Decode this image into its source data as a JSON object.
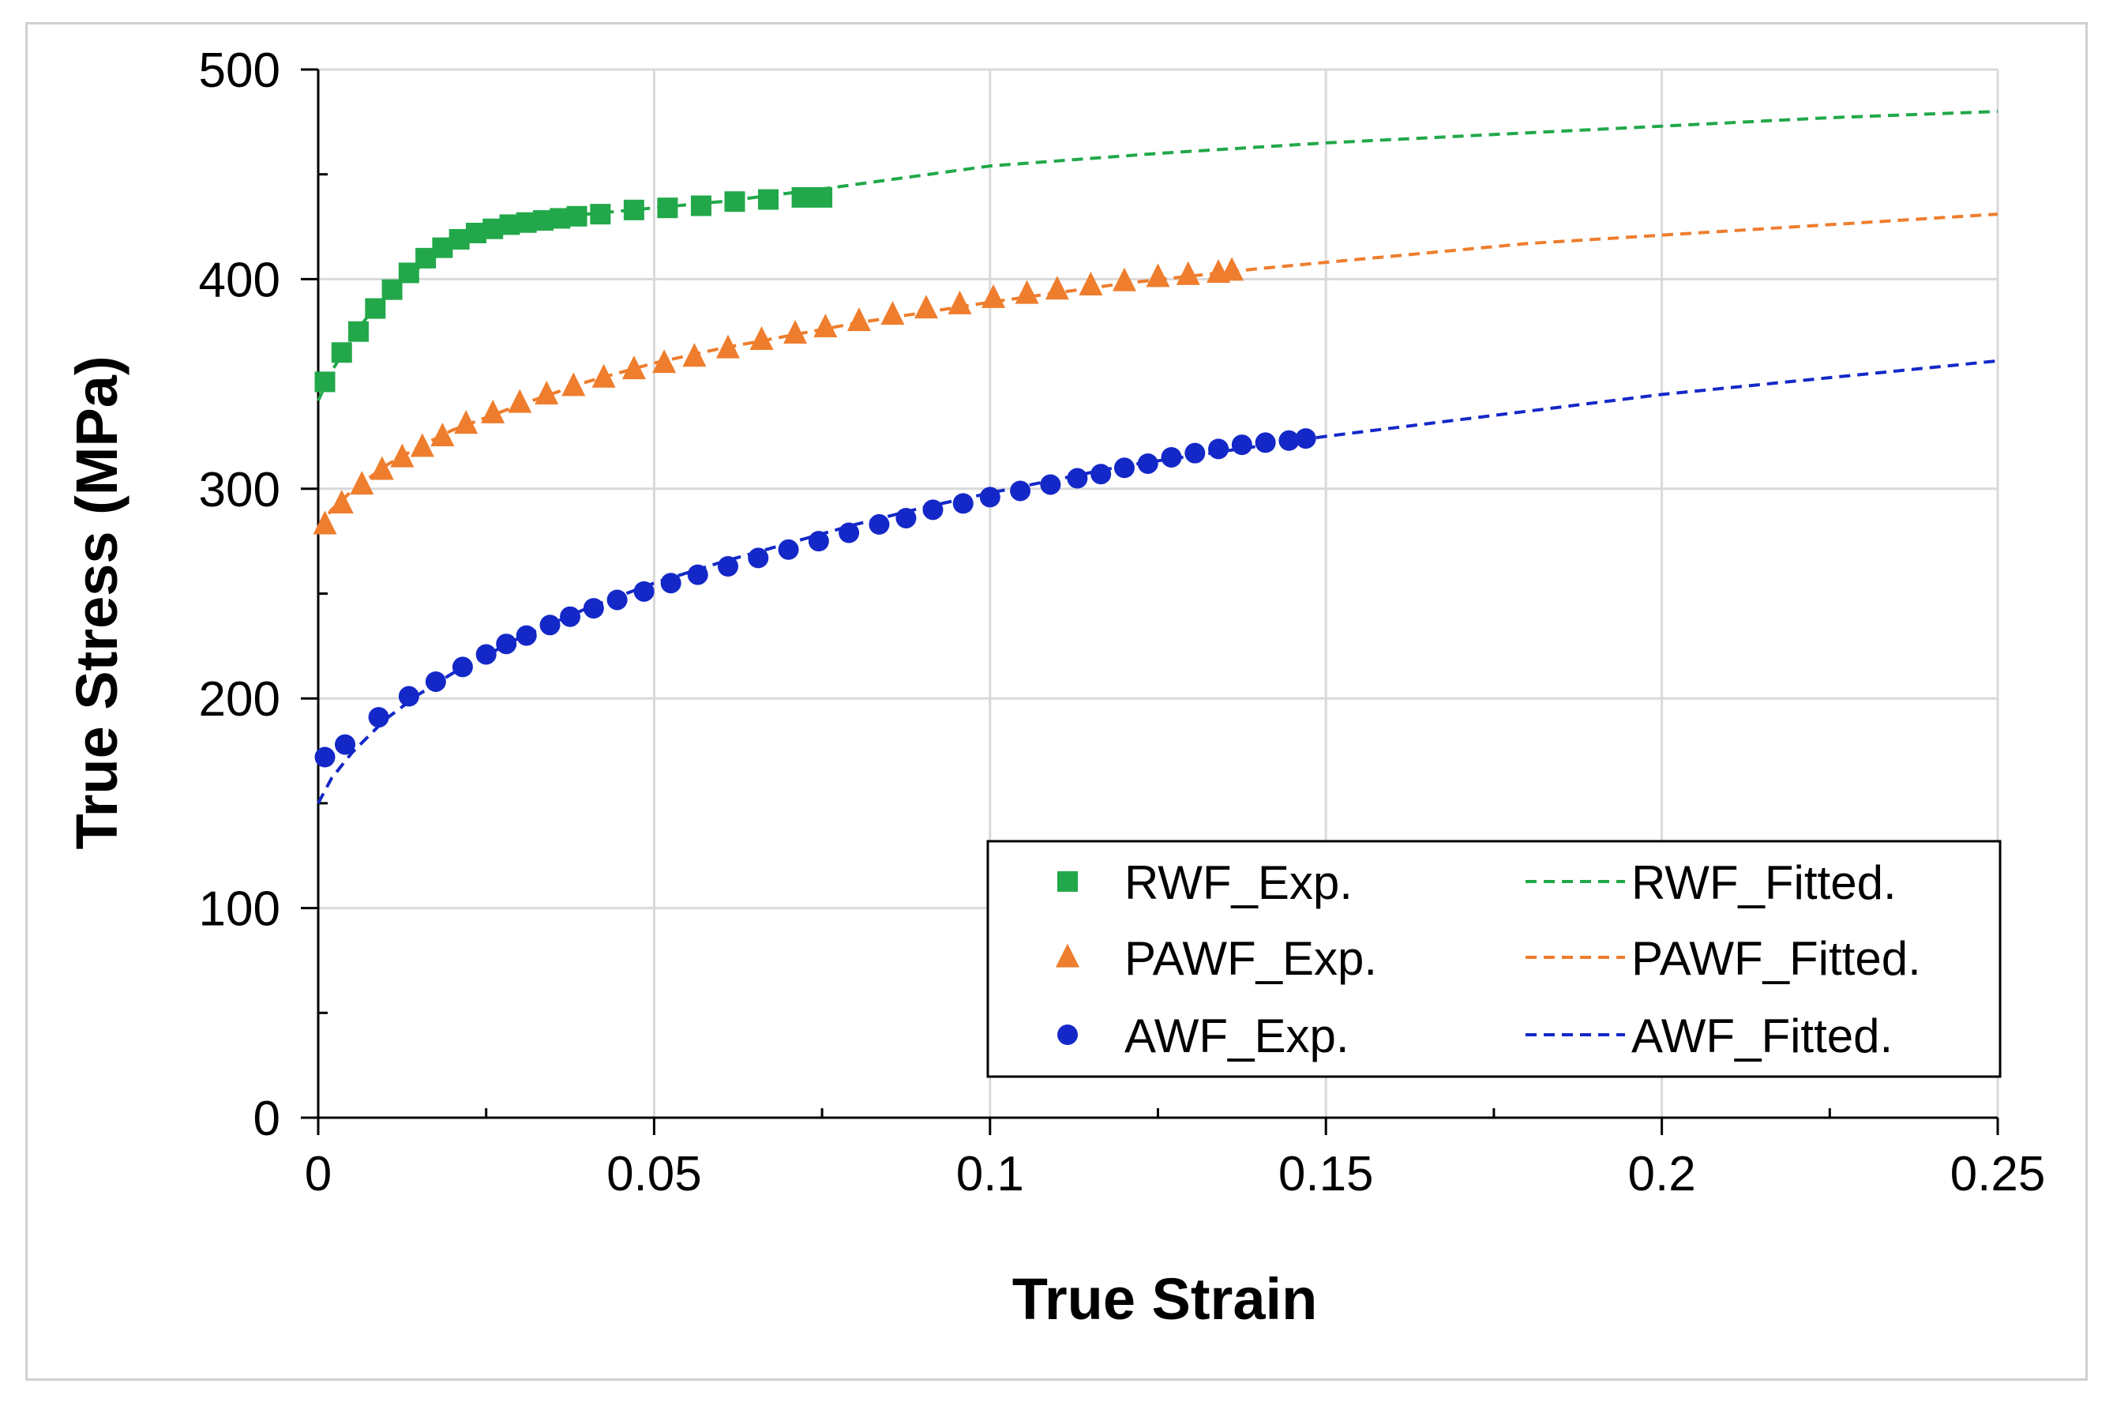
{
  "chart_data": {
    "type": "scatter",
    "title": "",
    "xlabel": "True Strain",
    "ylabel": "True Stress (MPa)",
    "xlim": [
      0,
      0.25
    ],
    "ylim": [
      0,
      500
    ],
    "x_ticks": [
      0,
      0.05,
      0.1,
      0.15,
      0.2,
      0.25
    ],
    "x_tick_labels": [
      "0",
      "0.05",
      "0.1",
      "0.15",
      "0.2",
      "0.25"
    ],
    "y_ticks": [
      0,
      100,
      200,
      300,
      400,
      500
    ],
    "y_tick_labels": [
      "0",
      "100",
      "200",
      "300",
      "400",
      "500"
    ],
    "grid": true,
    "legend_position": "bottom-right",
    "colors": {
      "rwf": "#22a84a",
      "pawf": "#ee7d2d",
      "awf": "#1428c8"
    },
    "series": [
      {
        "name": "RWF_Exp.",
        "kind": "points",
        "marker": "square",
        "color": "#22a84a",
        "x": [
          0.001,
          0.0035,
          0.006,
          0.0085,
          0.011,
          0.0135,
          0.016,
          0.0185,
          0.021,
          0.0235,
          0.026,
          0.0285,
          0.031,
          0.0335,
          0.036,
          0.0385,
          0.042,
          0.047,
          0.052,
          0.057,
          0.062,
          0.067,
          0.072,
          0.075
        ],
        "y": [
          351,
          365,
          375,
          386,
          395,
          403,
          410,
          415,
          419,
          422,
          424,
          426,
          427,
          428,
          429,
          430,
          431,
          433,
          434,
          435,
          437,
          438,
          439,
          439
        ]
      },
      {
        "name": "PAWF_Exp.",
        "kind": "points",
        "marker": "triangle",
        "color": "#ee7d2d",
        "x": [
          0.001,
          0.0035,
          0.0065,
          0.0095,
          0.0125,
          0.0155,
          0.0185,
          0.022,
          0.026,
          0.03,
          0.034,
          0.038,
          0.0425,
          0.047,
          0.0515,
          0.056,
          0.061,
          0.066,
          0.071,
          0.0755,
          0.0805,
          0.0855,
          0.0905,
          0.0955,
          0.1005,
          0.1055,
          0.11,
          0.115,
          0.12,
          0.125,
          0.1295,
          0.134,
          0.136
        ],
        "y": [
          283,
          293,
          302,
          309,
          315,
          320,
          325,
          331,
          336,
          341,
          345,
          349,
          353,
          357,
          360,
          363,
          367,
          371,
          374,
          377,
          380,
          383,
          386,
          388,
          391,
          393,
          395,
          397,
          399,
          401,
          402,
          403,
          404
        ]
      },
      {
        "name": "AWF_Exp.",
        "kind": "points",
        "marker": "circle",
        "color": "#1428c8",
        "x": [
          0.001,
          0.004,
          0.009,
          0.0135,
          0.0175,
          0.0215,
          0.025,
          0.028,
          0.031,
          0.0345,
          0.0375,
          0.041,
          0.0445,
          0.0485,
          0.0525,
          0.0565,
          0.061,
          0.0655,
          0.07,
          0.0745,
          0.079,
          0.0835,
          0.0875,
          0.0915,
          0.096,
          0.1,
          0.1045,
          0.109,
          0.113,
          0.1165,
          0.12,
          0.1235,
          0.127,
          0.1305,
          0.134,
          0.1375,
          0.141,
          0.1445,
          0.147
        ],
        "y": [
          172,
          178,
          191,
          201,
          208,
          215,
          221,
          226,
          230,
          235,
          239,
          243,
          247,
          251,
          255,
          259,
          263,
          267,
          271,
          275,
          279,
          283,
          286,
          290,
          293,
          296,
          299,
          302,
          305,
          307,
          310,
          312,
          315,
          317,
          319,
          321,
          322,
          323,
          324
        ]
      },
      {
        "name": "RWF_Fitted.",
        "kind": "line",
        "dash": true,
        "color": "#22a84a",
        "x": [
          0,
          0.002,
          0.005,
          0.008,
          0.012,
          0.016,
          0.02,
          0.025,
          0.03,
          0.04,
          0.05,
          0.06,
          0.075,
          0.1,
          0.125,
          0.15,
          0.175,
          0.2,
          0.225,
          0.25
        ],
        "y": [
          342,
          356,
          372,
          385,
          398,
          408,
          415,
          421,
          426,
          431,
          434,
          437,
          443,
          454,
          460,
          465,
          469,
          473,
          477,
          480
        ]
      },
      {
        "name": "PAWF_Fitted.",
        "kind": "line",
        "dash": true,
        "color": "#ee7d2d",
        "x": [
          0,
          0.002,
          0.005,
          0.01,
          0.015,
          0.02,
          0.03,
          0.04,
          0.05,
          0.06,
          0.07,
          0.08,
          0.1,
          0.12,
          0.14,
          0.16,
          0.18,
          0.2,
          0.225,
          0.25
        ],
        "y": [
          281,
          290,
          299,
          311,
          320,
          328,
          340,
          351,
          360,
          367,
          373,
          379,
          389,
          398,
          405,
          411,
          417,
          421,
          426,
          431
        ]
      },
      {
        "name": "AWF_Fitted.",
        "kind": "line",
        "dash": true,
        "color": "#1428c8",
        "x": [
          0,
          0.002,
          0.005,
          0.01,
          0.015,
          0.02,
          0.03,
          0.04,
          0.05,
          0.06,
          0.07,
          0.08,
          0.09,
          0.1,
          0.12,
          0.15,
          0.175,
          0.2,
          0.225,
          0.25
        ],
        "y": [
          150,
          162,
          174,
          190,
          202,
          212,
          229,
          243,
          255,
          265,
          274,
          283,
          291,
          298,
          311,
          325,
          335,
          345,
          353,
          361
        ]
      }
    ],
    "legend": [
      {
        "label": "RWF_Exp.",
        "series": 0
      },
      {
        "label": "RWF_Fitted.",
        "series": 3
      },
      {
        "label": "PAWF_Exp.",
        "series": 1
      },
      {
        "label": "PAWF_Fitted.",
        "series": 4
      },
      {
        "label": "AWF_Exp.",
        "series": 2
      },
      {
        "label": "AWF_Fitted.",
        "series": 5
      }
    ]
  }
}
